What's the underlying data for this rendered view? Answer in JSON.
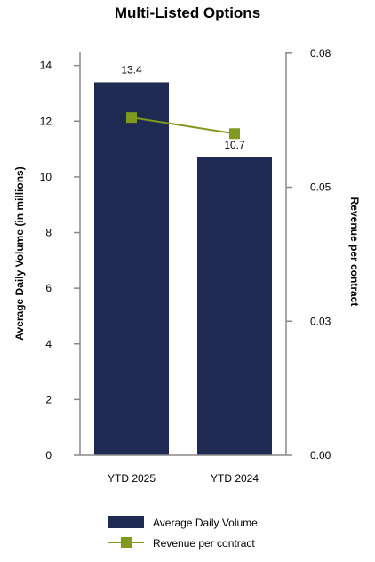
{
  "chart_data": {
    "type": "bar",
    "title": "Multi-Listed Options",
    "categories": [
      "YTD 2025",
      "YTD 2024"
    ],
    "series": [
      {
        "name": "Average Daily Volume",
        "kind": "bar",
        "axis": "left",
        "color": "#1f2a52",
        "values": [
          13.4,
          10.7
        ],
        "data_labels": [
          "13.4",
          "10.7"
        ]
      },
      {
        "name": "Revenue per contract",
        "kind": "line",
        "axis": "right",
        "color": "#7f9a1f",
        "values": [
          0.063,
          0.06
        ]
      }
    ],
    "y_left": {
      "label": "Average Daily Volume (in millions)",
      "ylim": [
        0,
        14.5
      ],
      "ticks": [
        0,
        2,
        4,
        6,
        8,
        10,
        12,
        14
      ],
      "tick_labels": [
        "0",
        "2",
        "4",
        "6",
        "8",
        "10",
        "12",
        "14"
      ]
    },
    "y_right": {
      "label": "Revenue per contract",
      "ylim": [
        0,
        0.0753
      ],
      "ticks": [
        0,
        0.025,
        0.05,
        0.075
      ],
      "tick_labels": [
        "0.00",
        "0.03",
        "0.05",
        "0.08"
      ]
    },
    "grid": false,
    "legend_position": "bottom"
  }
}
